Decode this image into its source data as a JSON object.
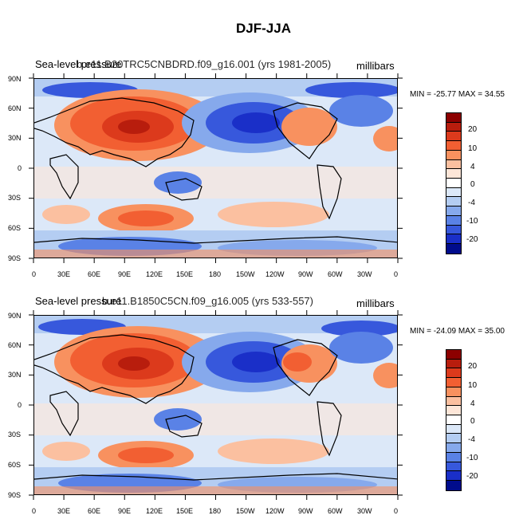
{
  "title": "DJF-JJA",
  "panels": [
    {
      "title_left": "Sea-level pressure",
      "title_case": "b.e11.B20TRC5CNBDRD.f09_g16.001 (yrs 1981-2005)",
      "units": "millibars",
      "minmax": "MIN = -25.77 MAX =  34.55"
    },
    {
      "title_left": "Sea-level pressure",
      "title_case": "b.e11.B1850C5CN.f09_g16.005 (yrs 533-557)",
      "units": "millibars",
      "minmax": "MIN = -24.09 MAX =  35.00"
    }
  ],
  "lat_labels": [
    "90N",
    "60N",
    "30N",
    "0",
    "30S",
    "60S",
    "90S"
  ],
  "lon_labels": [
    "0",
    "30E",
    "60E",
    "90E",
    "120E",
    "150E",
    "180",
    "150W",
    "120W",
    "90W",
    "60W",
    "30W",
    "0"
  ],
  "colorbar": {
    "labels": [
      "20",
      "10",
      "4",
      "0",
      "-4",
      "-10",
      "-20"
    ],
    "colors": [
      "#8c0000",
      "#b81d0d",
      "#dc3a1c",
      "#f25f32",
      "#f8915f",
      "#fbc0a0",
      "#fde6d8",
      "#ffffff",
      "#dce8f8",
      "#b4cdf2",
      "#86a9ec",
      "#5a82e6",
      "#3758dc",
      "#1a2fc8",
      "#000c8c"
    ]
  },
  "legend_notes": [
    "colorbar levels are shown as shaded boxes from dark red (high) to dark blue (low)"
  ]
}
